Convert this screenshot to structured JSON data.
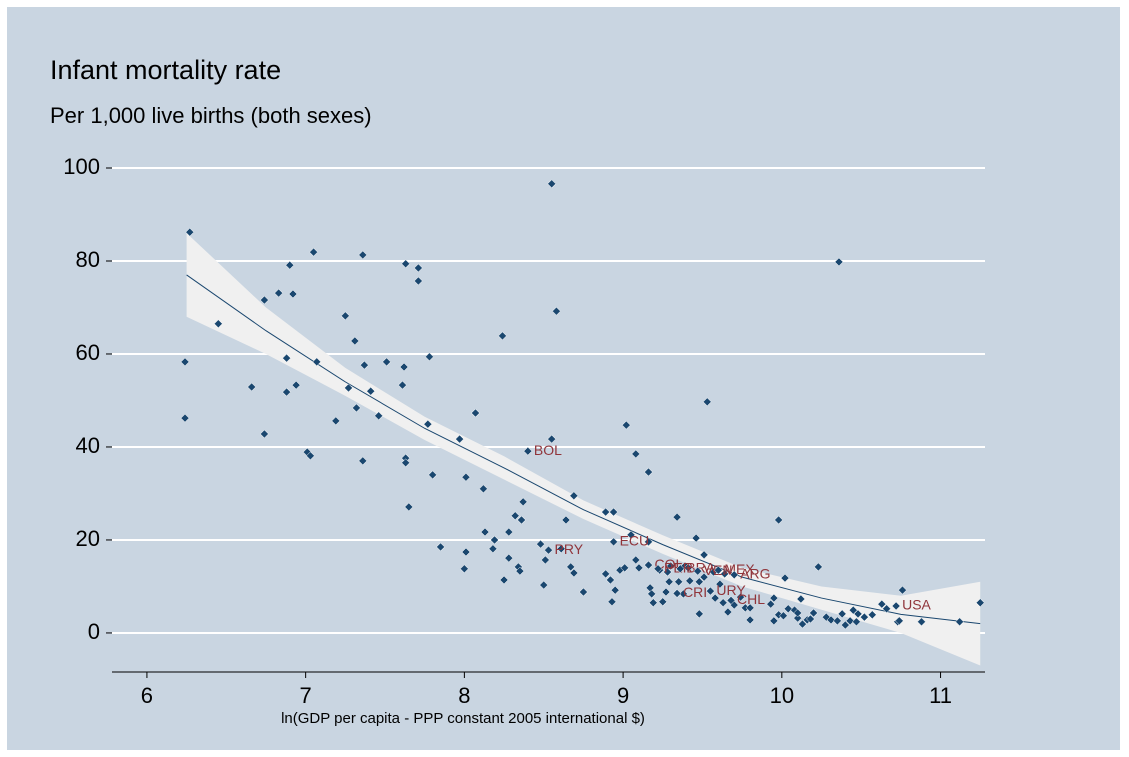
{
  "chart_data": {
    "type": "scatter",
    "title": "Infant mortality rate",
    "subtitle": "Per 1,000 live births (both sexes)",
    "x_label": "ln(GDP per capita - PPP constant 2005 international $)",
    "xlim": [
      5.78,
      11.28
    ],
    "ylim": [
      -8.4,
      100
    ],
    "xticks": [
      6,
      7,
      8,
      9,
      10,
      11
    ],
    "yticks": [
      0,
      20,
      40,
      60,
      80,
      100
    ],
    "grid": true,
    "marker_color": "#1a476f",
    "label_color": "#90353b",
    "fit_color": "#1a476f",
    "ci_color": "#f0f0f0",
    "points": {
      "x": [
        6.27,
        6.24,
        6.24,
        6.45,
        6.66,
        6.74,
        6.74,
        6.83,
        6.9,
        6.92,
        6.88,
        6.88,
        6.94,
        7.01,
        7.03,
        7.05,
        7.07,
        7.19,
        7.25,
        7.27,
        7.31,
        7.32,
        7.36,
        7.36,
        7.37,
        7.41,
        7.46,
        7.51,
        7.62,
        7.61,
        7.63,
        7.63,
        7.65,
        7.63,
        7.71,
        7.71,
        7.78,
        7.77,
        7.8,
        7.85,
        7.97,
        8.01,
        8.01,
        8.0,
        8.07,
        8.12,
        8.13,
        8.19,
        8.18,
        8.24,
        8.25,
        8.28,
        8.28,
        8.32,
        8.34,
        8.35,
        8.36,
        8.37,
        8.48,
        8.5,
        8.51,
        8.55,
        8.55,
        8.58,
        8.61,
        8.64,
        8.67,
        8.69,
        8.69,
        8.75,
        8.89,
        8.89,
        8.92,
        8.93,
        8.94,
        8.95,
        8.98,
        9.01,
        9.02,
        9.05,
        9.08,
        9.08,
        9.1,
        9.16,
        9.16,
        9.17,
        9.18,
        9.19,
        9.23,
        9.25,
        9.27,
        9.28,
        9.29,
        9.3,
        9.34,
        9.35,
        9.38,
        9.39,
        9.41,
        9.42,
        9.46,
        9.48,
        9.48,
        9.51,
        9.51,
        9.53,
        9.57,
        9.58,
        9.61,
        9.63,
        9.64,
        9.66,
        9.7,
        9.74,
        9.77,
        9.8,
        9.8,
        9.93,
        9.95,
        9.95,
        9.98,
        9.98,
        10.01,
        10.02,
        10.04,
        10.08,
        10.1,
        10.1,
        10.12,
        10.13,
        10.16,
        10.18,
        10.2,
        10.23,
        10.28,
        10.31,
        10.35,
        10.36,
        10.38,
        10.4,
        10.43,
        10.45,
        10.47,
        10.48,
        10.52,
        10.57,
        10.63,
        10.66,
        10.73,
        10.76,
        10.74,
        10.88,
        11.12,
        11.25
      ],
      "y": [
        86.2,
        58.3,
        46.2,
        66.5,
        52.9,
        71.6,
        42.8,
        73.1,
        79.1,
        72.9,
        59.1,
        51.8,
        53.3,
        38.9,
        38.1,
        81.9,
        58.3,
        45.6,
        68.2,
        52.7,
        62.8,
        48.4,
        37.0,
        81.3,
        57.6,
        52.0,
        46.7,
        58.3,
        57.2,
        53.3,
        37.6,
        36.6,
        27.1,
        79.4,
        78.5,
        75.7,
        59.4,
        44.9,
        34.0,
        18.5,
        41.7,
        33.5,
        17.4,
        13.8,
        47.3,
        31.0,
        21.7,
        20.0,
        18.1,
        63.9,
        11.4,
        21.7,
        16.1,
        25.2,
        14.2,
        13.3,
        24.3,
        28.2,
        19.1,
        10.3,
        15.7,
        96.6,
        41.7,
        69.2,
        18.1,
        24.3,
        14.2,
        29.5,
        12.9,
        8.8,
        26.0,
        12.7,
        11.4,
        6.7,
        26.0,
        9.2,
        13.5,
        14.0,
        44.7,
        21.1,
        38.5,
        15.7,
        14.0,
        19.6,
        34.6,
        9.7,
        8.4,
        6.5,
        13.5,
        6.7,
        8.8,
        13.1,
        11.0,
        14.4,
        24.9,
        11.0,
        8.4,
        14.4,
        14.0,
        11.2,
        20.4,
        11.0,
        4.1,
        12.0,
        16.8,
        49.7,
        13.1,
        7.5,
        10.5,
        6.5,
        12.7,
        4.5,
        6.0,
        7.7,
        5.4,
        2.8,
        5.4,
        6.2,
        7.5,
        2.6,
        24.3,
        3.9,
        3.7,
        11.8,
        5.2,
        4.9,
        3.2,
        4.3,
        7.3,
        1.9,
        2.8,
        3.0,
        4.3,
        14.2,
        3.4,
        2.8,
        2.6,
        79.8,
        4.1,
        1.7,
        2.6,
        4.9,
        2.4,
        4.1,
        3.4,
        3.9,
        6.2,
        5.2,
        2.4,
        9.2,
        2.6,
        2.4,
        2.4,
        6.5
      ]
    },
    "labeled": {
      "labels": [
        "BOL",
        "PRY",
        "ECU",
        "COL",
        "PER",
        "BRA",
        "VEN",
        "MEX",
        "ARG",
        "CRI",
        "URY",
        "CHL",
        "USA"
      ],
      "x": [
        8.4,
        8.53,
        8.94,
        9.16,
        9.22,
        9.36,
        9.47,
        9.6,
        9.7,
        9.34,
        9.55,
        9.68,
        10.72
      ],
      "y": [
        39.1,
        17.8,
        19.6,
        14.6,
        13.8,
        13.8,
        13.3,
        13.5,
        12.5,
        8.5,
        9.0,
        7.0,
        5.8
      ]
    },
    "fit": {
      "x": [
        6.25,
        6.75,
        7.25,
        7.75,
        8.25,
        8.75,
        9.25,
        9.75,
        10.25,
        10.75,
        11.25
      ],
      "y": [
        77,
        65,
        54,
        44,
        35.5,
        26.5,
        19,
        12,
        7.5,
        4,
        2
      ],
      "ci_lower": [
        68,
        60,
        51,
        41.5,
        33,
        24.5,
        17,
        10,
        5,
        0,
        -7
      ],
      "ci_upper": [
        86,
        70,
        57,
        46.5,
        38,
        28.5,
        21,
        14,
        10,
        8,
        11
      ]
    }
  }
}
